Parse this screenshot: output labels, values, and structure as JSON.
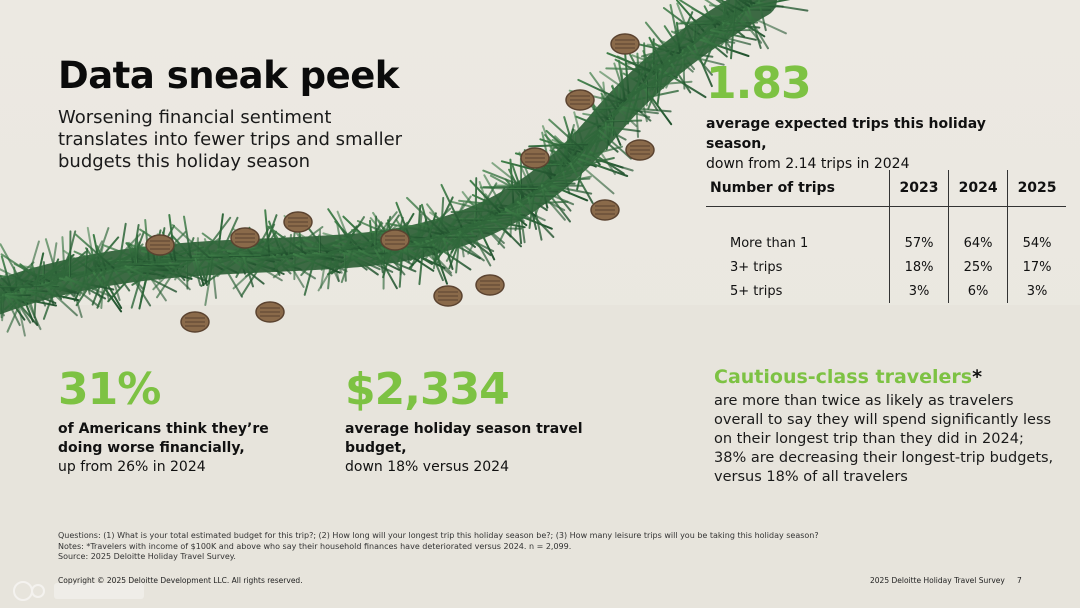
{
  "header": {
    "title": "Data sneak peek",
    "subtitle": "Worsening financial sentiment translates into fewer trips and smaller budgets this holiday season"
  },
  "trips_stat": {
    "value": "1.83",
    "desc_bold": "average expected trips this holiday season,",
    "desc_rest": "down from 2.14 trips in 2024"
  },
  "trips_table": {
    "headers": [
      "Number of trips",
      "2023",
      "2024",
      "2025"
    ],
    "rows": [
      [
        "More than 1",
        "57%",
        "64%",
        "54%"
      ],
      [
        "3+ trips",
        "18%",
        "25%",
        "17%"
      ],
      [
        "5+ trips",
        "3%",
        "6%",
        "3%"
      ]
    ]
  },
  "financial_stat": {
    "value": "31%",
    "desc_bold": "of Americans think they’re doing worse financially,",
    "desc_rest": "up from 26% in 2024"
  },
  "budget_stat": {
    "value": "$2,334",
    "desc_bold": "average holiday season travel budget,",
    "desc_rest": "down 18% versus 2024"
  },
  "cautious": {
    "title": "Cautious-class travelers",
    "star": "*",
    "desc": "are more than twice as likely as travelers overall to say they will spend significantly less on their longest trip than they did in 2024; 38% are decreasing their longest-trip budgets, versus 18% of all travelers"
  },
  "notes": {
    "questions": "Questions: (1) What is your total estimated budget for this trip?; (2) How long will your longest trip this holiday season be?; (3) How many leisure trips will you be taking this holiday season?",
    "notes": "Notes: *Travelers with income of $100K and above who say their household finances have deteriorated versus 2024. n = 2,099.",
    "source": "Source: 2025 Deloitte Holiday Travel Survey."
  },
  "footer": {
    "copyright": "Copyright © 2025 Deloitte Development LLC. All rights reserved.",
    "survey": "2025 Deloitte Holiday Travel Survey",
    "page": "7"
  },
  "colors": {
    "accent_green": "#7dc243",
    "garland_green": "#2f6b3b",
    "background": "#ece9e2"
  }
}
